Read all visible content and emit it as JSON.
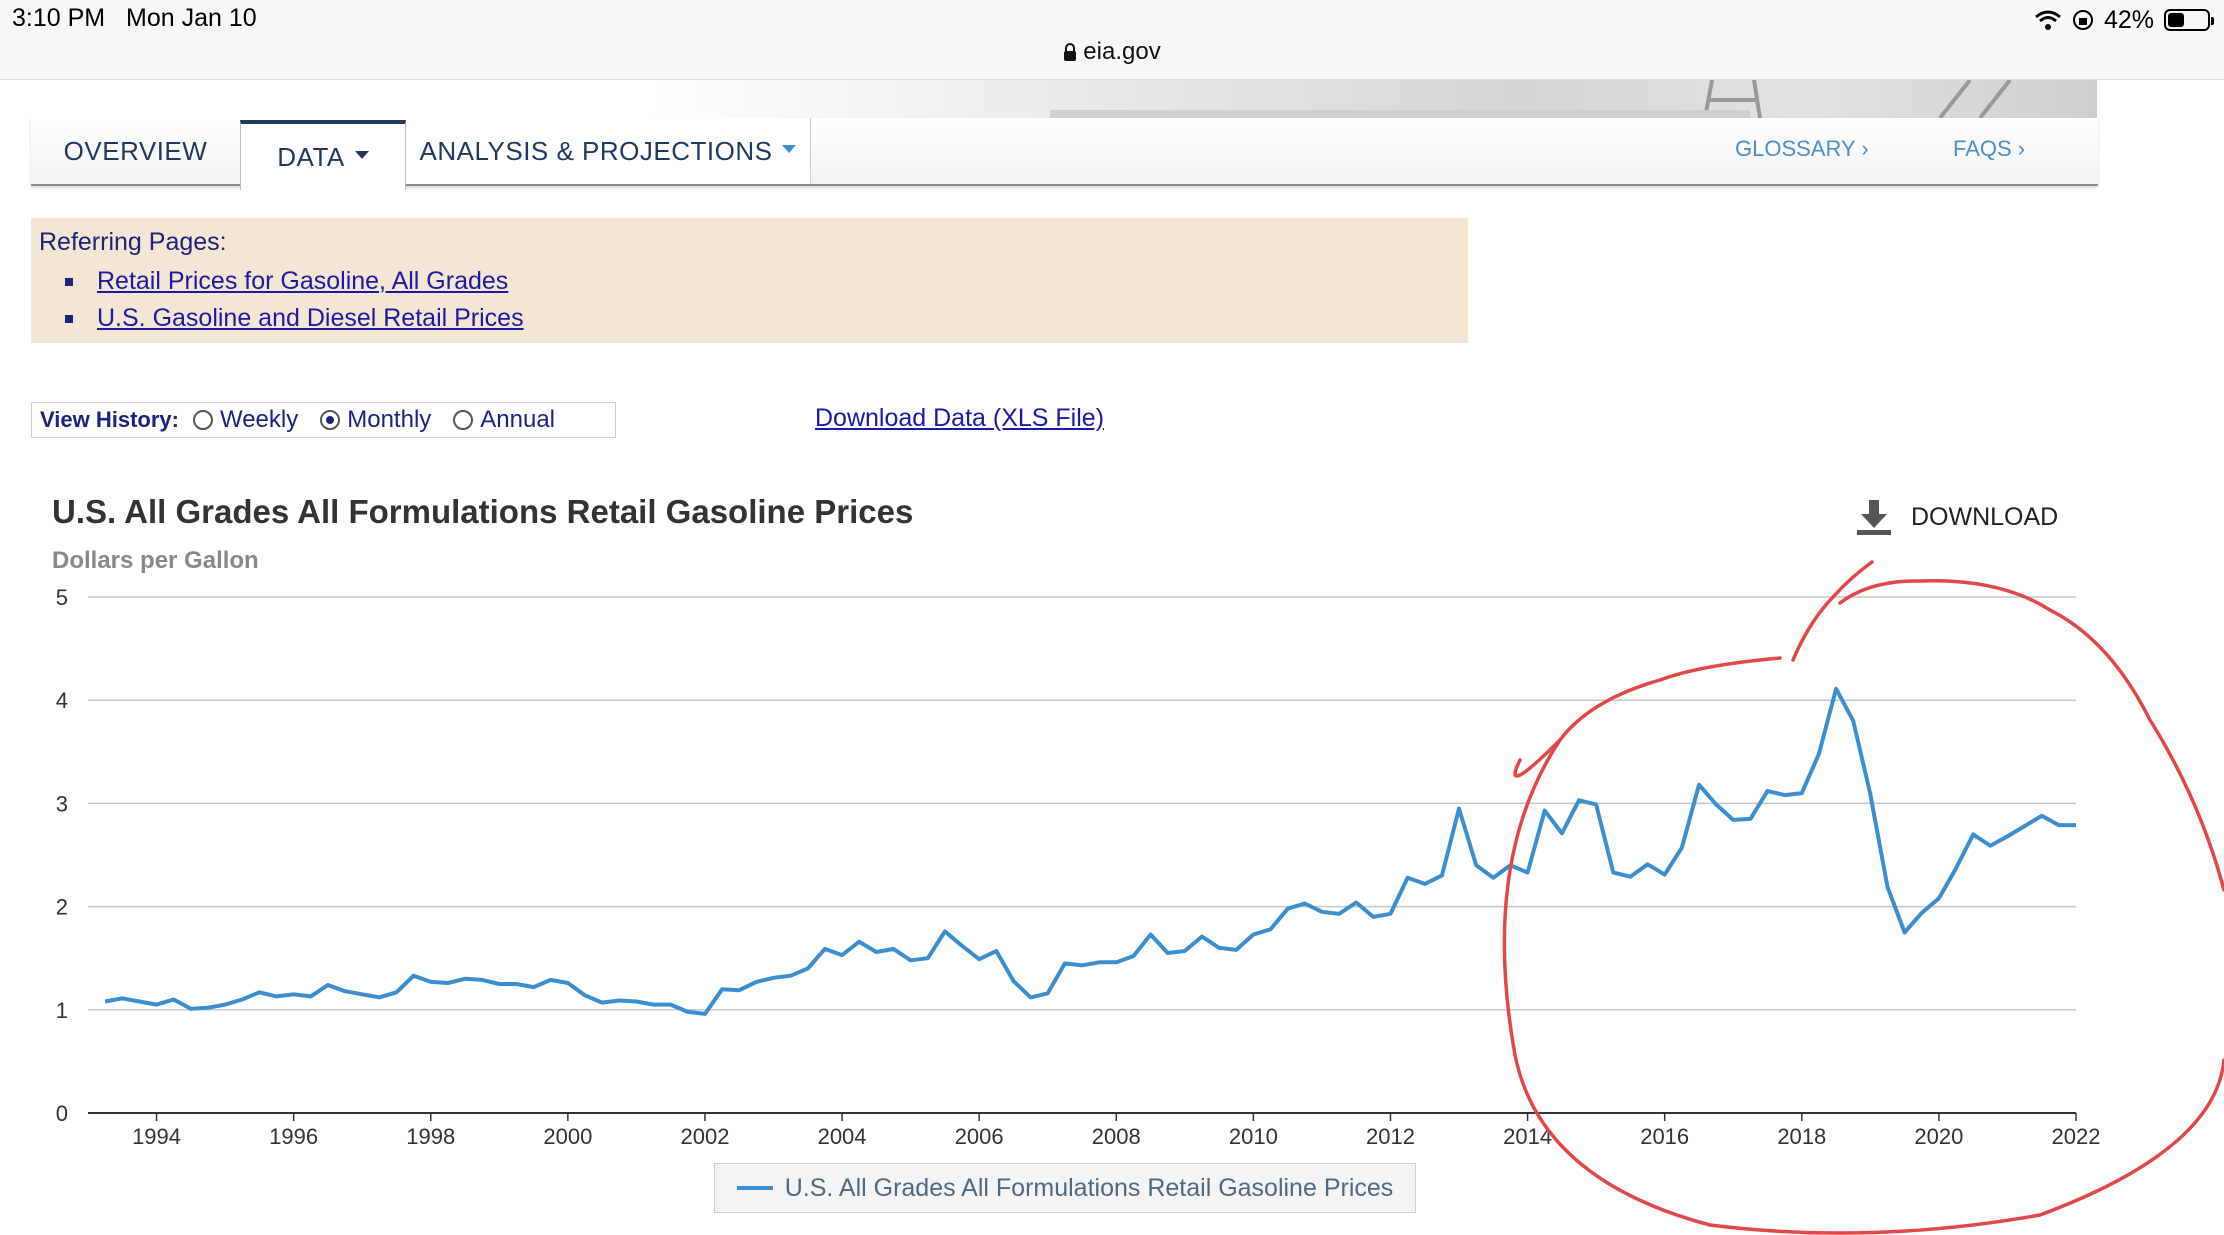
{
  "status_bar": {
    "time": "3:10 PM",
    "date": "Mon Jan 10",
    "url": "eia.gov",
    "battery": "42%",
    "battery_level": 0.42
  },
  "nav": {
    "tabs": [
      {
        "label": "OVERVIEW"
      },
      {
        "label": "DATA",
        "active": true
      },
      {
        "label": "ANALYSIS & PROJECTIONS"
      }
    ],
    "links": [
      {
        "label": "GLOSSARY ›"
      },
      {
        "label": "FAQS ›"
      }
    ]
  },
  "referring": {
    "title": "Referring Pages:",
    "items": [
      "Retail Prices for Gasoline, All Grades",
      "U.S. Gasoline and Diesel Retail Prices"
    ]
  },
  "view_history": {
    "label": "View History:",
    "options": [
      "Weekly",
      "Monthly",
      "Annual"
    ],
    "selected": "Monthly"
  },
  "download_xls": "Download Data (XLS File)",
  "chart_download": "DOWNLOAD",
  "colors": {
    "series": "#3b8fd0",
    "annotation": "#e34848",
    "link": "#1a1aa6",
    "referring_bg": "#f5e6d3"
  },
  "chart_data": {
    "type": "line",
    "title": "U.S. All Grades All Formulations Retail Gasoline Prices",
    "ylabel": "Dollars per Gallon",
    "ylim": [
      0,
      5
    ],
    "yticks": [
      0,
      1,
      2,
      3,
      4,
      5
    ],
    "xlim": [
      1993.0,
      2022.0
    ],
    "xticks": [
      "1994",
      "1996",
      "1998",
      "2000",
      "2002",
      "2004",
      "2006",
      "2008",
      "2010",
      "2012",
      "2014",
      "2016",
      "2018",
      "2020",
      "2022"
    ],
    "grid": true,
    "legend": "bottom-center",
    "series": [
      {
        "name": "U.S. All Grades All Formulations Retail Gasoline Prices",
        "points": [
          [
            1993.25,
            1.08
          ],
          [
            1993.5,
            1.11
          ],
          [
            1993.75,
            1.08
          ],
          [
            1994.0,
            1.05
          ],
          [
            1994.25,
            1.1
          ],
          [
            1994.5,
            1.01
          ],
          [
            1994.75,
            1.02
          ],
          [
            1995.0,
            1.05
          ],
          [
            1995.25,
            1.1
          ],
          [
            1995.5,
            1.17
          ],
          [
            1995.75,
            1.13
          ],
          [
            1996.0,
            1.15
          ],
          [
            1996.25,
            1.13
          ],
          [
            1996.5,
            1.24
          ],
          [
            1996.75,
            1.18
          ],
          [
            1997.0,
            1.15
          ],
          [
            1997.25,
            1.12
          ],
          [
            1997.5,
            1.17
          ],
          [
            1997.75,
            1.33
          ],
          [
            1998.0,
            1.27
          ],
          [
            1998.25,
            1.26
          ],
          [
            1998.5,
            1.3
          ],
          [
            1998.75,
            1.29
          ],
          [
            1999.0,
            1.25
          ],
          [
            1999.25,
            1.25
          ],
          [
            1999.5,
            1.22
          ],
          [
            1999.75,
            1.29
          ],
          [
            2000.0,
            1.26
          ],
          [
            2000.25,
            1.14
          ],
          [
            2000.5,
            1.07
          ],
          [
            2000.75,
            1.09
          ],
          [
            2001.0,
            1.08
          ],
          [
            2001.25,
            1.05
          ],
          [
            2001.5,
            1.05
          ],
          [
            2001.75,
            0.98
          ],
          [
            2002.0,
            0.96
          ],
          [
            2002.25,
            1.2
          ],
          [
            2002.5,
            1.19
          ],
          [
            2002.75,
            1.27
          ],
          [
            2003.0,
            1.31
          ],
          [
            2003.25,
            1.33
          ],
          [
            2003.5,
            1.4
          ],
          [
            2003.75,
            1.59
          ],
          [
            2004.0,
            1.53
          ],
          [
            2004.25,
            1.66
          ],
          [
            2004.5,
            1.56
          ],
          [
            2004.75,
            1.59
          ],
          [
            2005.0,
            1.48
          ],
          [
            2005.25,
            1.5
          ],
          [
            2005.5,
            1.76
          ],
          [
            2005.75,
            1.62
          ],
          [
            2006.0,
            1.49
          ],
          [
            2006.25,
            1.57
          ],
          [
            2006.5,
            1.28
          ],
          [
            2006.75,
            1.12
          ],
          [
            2007.0,
            1.16
          ],
          [
            2007.25,
            1.45
          ],
          [
            2007.5,
            1.43
          ],
          [
            2007.75,
            1.46
          ],
          [
            2008.0,
            1.46
          ],
          [
            2008.25,
            1.52
          ],
          [
            2008.5,
            1.73
          ],
          [
            2008.75,
            1.55
          ],
          [
            2009.0,
            1.57
          ],
          [
            2009.25,
            1.71
          ],
          [
            2009.5,
            1.6
          ],
          [
            2009.75,
            1.58
          ],
          [
            2010.0,
            1.73
          ],
          [
            2010.25,
            1.78
          ],
          [
            2010.5,
            1.98
          ],
          [
            2010.75,
            2.03
          ],
          [
            2011.0,
            1.95
          ],
          [
            2011.25,
            1.93
          ],
          [
            2011.5,
            2.04
          ],
          [
            2011.75,
            1.9
          ],
          [
            2012.0,
            1.93
          ],
          [
            2012.25,
            2.28
          ],
          [
            2012.5,
            2.22
          ],
          [
            2012.75,
            2.3
          ],
          [
            2013.0,
            2.95
          ],
          [
            2013.25,
            2.4
          ],
          [
            2013.5,
            2.28
          ],
          [
            2013.75,
            2.4
          ],
          [
            2014.0,
            2.33
          ],
          [
            2014.25,
            2.93
          ],
          [
            2014.5,
            2.71
          ],
          [
            2014.75,
            3.03
          ],
          [
            2015.0,
            2.99
          ],
          [
            2015.25,
            2.33
          ],
          [
            2015.5,
            2.29
          ],
          [
            2015.75,
            2.41
          ],
          [
            2016.0,
            2.31
          ],
          [
            2016.25,
            2.57
          ],
          [
            2016.5,
            3.18
          ],
          [
            2016.75,
            2.99
          ],
          [
            2017.0,
            2.84
          ],
          [
            2017.25,
            2.85
          ],
          [
            2017.5,
            3.12
          ],
          [
            2017.75,
            3.08
          ],
          [
            2018.0,
            3.1
          ],
          [
            2018.25,
            3.48
          ],
          [
            2018.5,
            4.11
          ],
          [
            2018.75,
            3.8
          ],
          [
            2019.0,
            3.09
          ],
          [
            2019.25,
            2.19
          ],
          [
            2019.5,
            1.75
          ],
          [
            2019.75,
            1.94
          ],
          [
            2020.0,
            2.08
          ],
          [
            2020.25,
            2.37
          ],
          [
            2020.5,
            2.7
          ],
          [
            2020.75,
            2.59
          ],
          [
            2021.0,
            2.68
          ],
          [
            2021.25,
            2.78
          ],
          [
            2021.5,
            2.88
          ],
          [
            2021.75,
            2.79
          ],
          [
            2022.0,
            2.79
          ]
        ]
      }
    ]
  }
}
